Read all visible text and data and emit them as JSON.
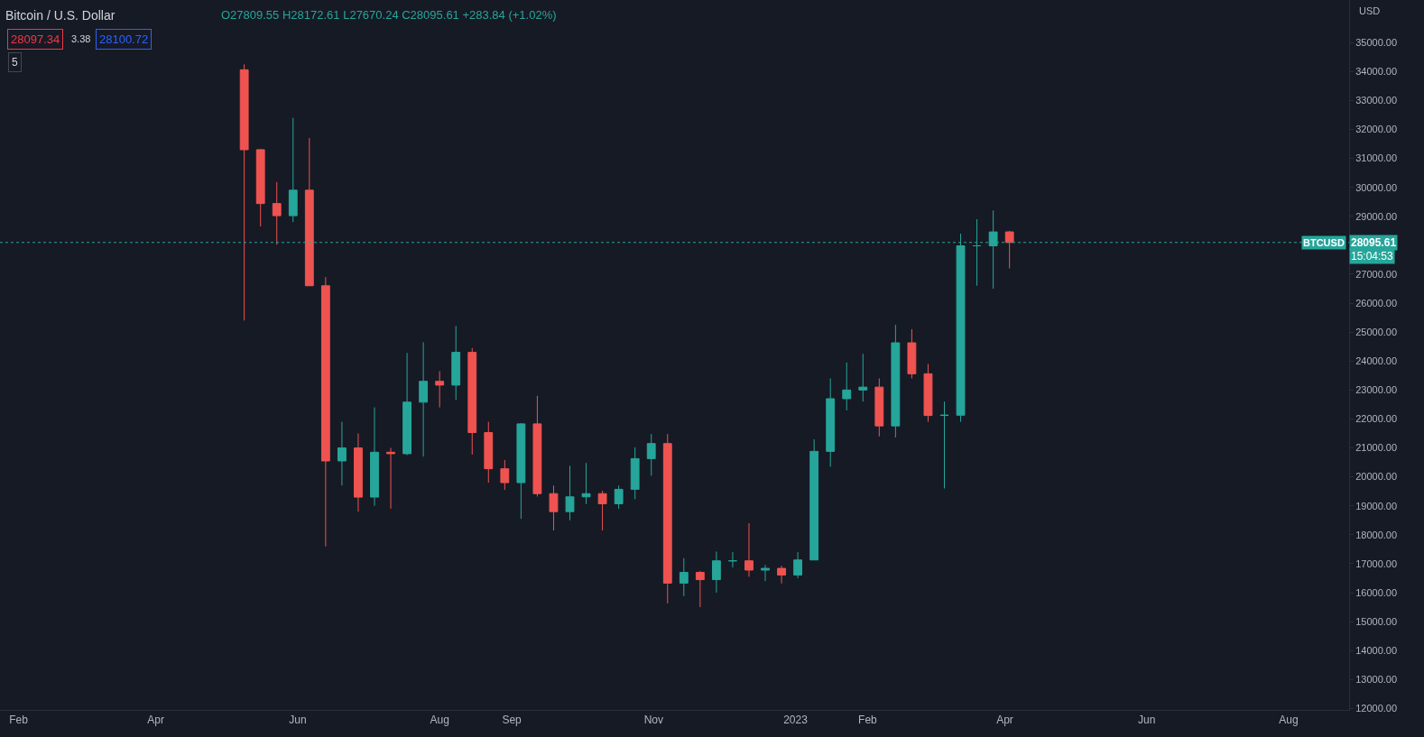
{
  "chart_data": {
    "type": "candlestick",
    "title": "Bitcoin / U.S. Dollar",
    "ylabel": "USD",
    "annotations": [
      "O27809.55 H28172.61 L27670.24 C28095.61 +283.84 (+1.02%)",
      "28097.34",
      "3.38",
      "28100.72",
      "5",
      "28095.61",
      "15:04:53"
    ],
    "x": [
      "2022-05-09",
      "2022-05-16",
      "2022-05-23",
      "2022-05-30",
      "2022-06-06",
      "2022-06-13",
      "2022-06-20",
      "2022-06-27",
      "2022-07-04",
      "2022-07-11",
      "2022-07-18",
      "2022-07-25",
      "2022-08-01",
      "2022-08-08",
      "2022-08-15",
      "2022-08-22",
      "2022-08-29",
      "2022-09-05",
      "2022-09-12",
      "2022-09-19",
      "2022-09-26",
      "2022-10-03",
      "2022-10-10",
      "2022-10-17",
      "2022-10-24",
      "2022-10-31",
      "2022-11-07",
      "2022-11-14",
      "2022-11-21",
      "2022-11-28",
      "2022-12-05",
      "2022-12-12",
      "2022-12-19",
      "2022-12-26",
      "2023-01-02",
      "2023-01-09",
      "2023-01-16",
      "2023-01-23",
      "2023-01-30",
      "2023-02-06",
      "2023-02-13",
      "2023-02-20",
      "2023-02-27",
      "2023-03-06",
      "2023-03-13",
      "2023-03-20",
      "2023-03-27",
      "2023-04-03"
    ],
    "ohlc": [
      [
        34060,
        34250,
        25400,
        31300
      ],
      [
        31300,
        31330,
        28650,
        29440
      ],
      [
        29440,
        30180,
        28020,
        29020
      ],
      [
        29020,
        32400,
        28800,
        29900
      ],
      [
        29900,
        31700,
        26600,
        26600
      ],
      [
        26600,
        26900,
        17600,
        20550
      ],
      [
        20550,
        21900,
        19700,
        21000
      ],
      [
        21000,
        21500,
        18800,
        19300
      ],
      [
        19300,
        22400,
        19000,
        20850
      ],
      [
        20850,
        21000,
        18900,
        20800
      ],
      [
        20800,
        24280,
        20750,
        22580
      ],
      [
        22580,
        24650,
        20700,
        23300
      ],
      [
        23300,
        23650,
        22400,
        23170
      ],
      [
        23170,
        25210,
        22660,
        24300
      ],
      [
        24300,
        24450,
        20770,
        21530
      ],
      [
        21530,
        21900,
        19800,
        20280
      ],
      [
        20280,
        20580,
        19550,
        19800
      ],
      [
        19800,
        21860,
        18550,
        21830
      ],
      [
        21830,
        22800,
        19320,
        19420
      ],
      [
        19420,
        19700,
        18150,
        18800
      ],
      [
        18800,
        20380,
        18500,
        19310
      ],
      [
        19310,
        20480,
        19060,
        19420
      ],
      [
        19420,
        19520,
        18150,
        19070
      ],
      [
        19070,
        19700,
        18900,
        19570
      ],
      [
        19570,
        21020,
        19230,
        20630
      ],
      [
        20630,
        21480,
        20040,
        21150
      ],
      [
        21150,
        21480,
        15630,
        16330
      ],
      [
        16330,
        17190,
        15880,
        16700
      ],
      [
        16700,
        16750,
        15500,
        16450
      ],
      [
        16450,
        17420,
        16000,
        17100
      ],
      [
        17100,
        17400,
        16870,
        17100
      ],
      [
        17100,
        18400,
        16550,
        16780
      ],
      [
        16780,
        16960,
        16400,
        16840
      ],
      [
        16840,
        16930,
        16320,
        16610
      ],
      [
        16610,
        17400,
        16500,
        17130
      ],
      [
        17130,
        21300,
        17130,
        20880
      ],
      [
        20880,
        23400,
        20350,
        22700
      ],
      [
        22700,
        23950,
        22300,
        23000
      ],
      [
        23000,
        24250,
        22600,
        23100
      ],
      [
        23100,
        23400,
        21400,
        21760
      ],
      [
        21760,
        25250,
        21360,
        24630
      ],
      [
        24630,
        25100,
        23400,
        23560
      ],
      [
        23560,
        23900,
        21900,
        22120
      ],
      [
        22120,
        22600,
        19600,
        22130
      ],
      [
        22130,
        28400,
        21900,
        27980
      ],
      [
        27980,
        28900,
        26600,
        27980
      ],
      [
        27980,
        29200,
        26500,
        28460
      ],
      [
        28460,
        28500,
        27200,
        28096
      ]
    ],
    "colors": [
      "#ef5350",
      "#ef5350",
      "#ef5350",
      "#26a69a",
      "#ef5350",
      "#ef5350",
      "#26a69a",
      "#ef5350",
      "#26a69a",
      "#ef5350",
      "#26a69a",
      "#26a69a",
      "#ef5350",
      "#26a69a",
      "#ef5350",
      "#ef5350",
      "#ef5350",
      "#26a69a",
      "#ef5350",
      "#ef5350",
      "#26a69a",
      "#26a69a",
      "#ef5350",
      "#26a69a",
      "#26a69a",
      "#26a69a",
      "#ef5350",
      "#26a69a",
      "#ef5350",
      "#26a69a",
      "#26a69a",
      "#ef5350",
      "#26a69a",
      "#ef5350",
      "#26a69a",
      "#26a69a",
      "#26a69a",
      "#26a69a",
      "#26a69a",
      "#ef5350",
      "#26a69a",
      "#ef5350",
      "#ef5350",
      "#26a69a",
      "#26a69a",
      "#26a69a",
      "#26a69a",
      "#ef5350"
    ],
    "xlim": [
      "2022-01-24",
      "2023-08-27"
    ],
    "xticks": [
      {
        "value": "2022-02-01",
        "label": "Feb"
      },
      {
        "value": "2022-04-01",
        "label": "Apr"
      },
      {
        "value": "2022-06-01",
        "label": "Jun"
      },
      {
        "value": "2022-08-01",
        "label": "Aug"
      },
      {
        "value": "2022-09-01",
        "label": "Sep"
      },
      {
        "value": "2022-11-01",
        "label": "Nov"
      },
      {
        "value": "2023-01-01",
        "label": "2023"
      },
      {
        "value": "2023-02-01",
        "label": "Feb"
      },
      {
        "value": "2023-04-01",
        "label": "Apr"
      },
      {
        "value": "2023-06-01",
        "label": "Jun"
      },
      {
        "value": "2023-08-01",
        "label": "Aug"
      }
    ],
    "ylim": [
      11950,
      36470
    ],
    "yticks": [
      {
        "value": 12000,
        "label": "12000.00"
      },
      {
        "value": 13000,
        "label": "13000.00"
      },
      {
        "value": 14000,
        "label": "14000.00"
      },
      {
        "value": 15000,
        "label": "15000.00"
      },
      {
        "value": 16000,
        "label": "16000.00"
      },
      {
        "value": 17000,
        "label": "17000.00"
      },
      {
        "value": 18000,
        "label": "18000.00"
      },
      {
        "value": 19000,
        "label": "19000.00"
      },
      {
        "value": 20000,
        "label": "20000.00"
      },
      {
        "value": 21000,
        "label": "21000.00"
      },
      {
        "value": 22000,
        "label": "22000.00"
      },
      {
        "value": 23000,
        "label": "23000.00"
      },
      {
        "value": 24000,
        "label": "24000.00"
      },
      {
        "value": 25000,
        "label": "25000.00"
      },
      {
        "value": 26000,
        "label": "26000.00"
      },
      {
        "value": 27000,
        "label": "27000.00"
      },
      {
        "value": 28000,
        "label": null
      },
      {
        "value": 29000,
        "label": "29000.00"
      },
      {
        "value": 30000,
        "label": "30000.00"
      },
      {
        "value": 31000,
        "label": "31000.00"
      },
      {
        "value": 32000,
        "label": "32000.00"
      },
      {
        "value": 33000,
        "label": "33000.00"
      },
      {
        "value": 34000,
        "label": "34000.00"
      },
      {
        "value": 35000,
        "label": "35000.00"
      }
    ],
    "ref_lines": [
      {
        "axis": "y",
        "value": 28095.61,
        "label": "BTCUSD",
        "color": "#26a69a",
        "line_style": "dotted"
      }
    ],
    "grid": false
  }
}
